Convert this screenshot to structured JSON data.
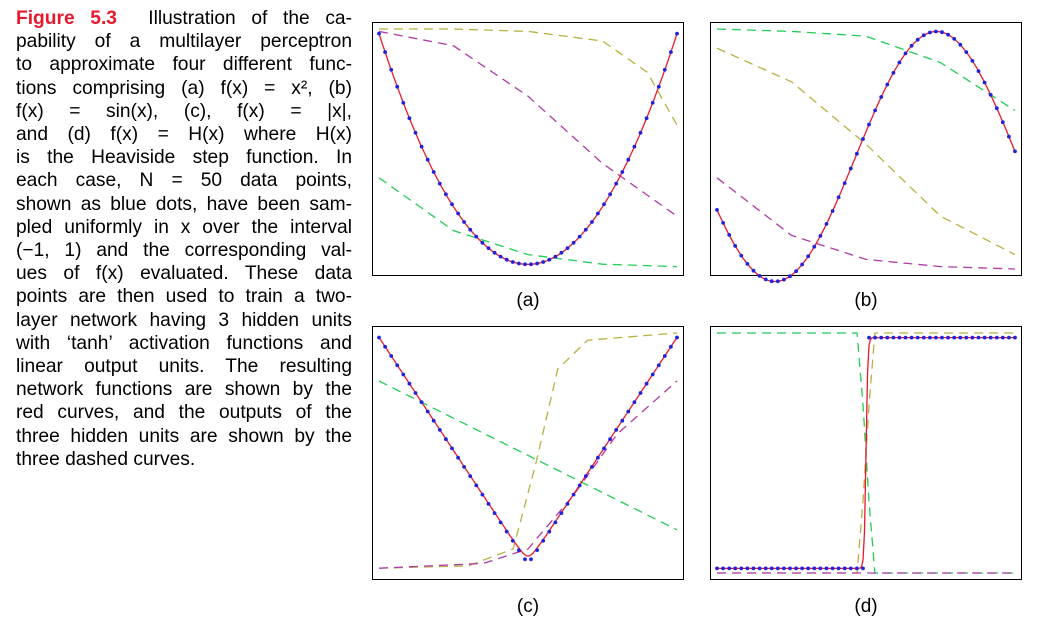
{
  "caption": {
    "label": "Figure 5.3",
    "lines": [
      "Illustration of the ca-",
      "pability of a multilayer perceptron",
      "to approximate four different func-",
      "tions comprising (a) f(x) = x², (b)",
      "f(x) = sin(x), (c), f(x) = |x|,",
      "and (d) f(x) = H(x) where H(x)",
      "is the Heaviside step function. In",
      "each case, N = 50 data points,",
      "shown as blue dots, have been sam-",
      "pled uniformly in x over the interval",
      "(−1, 1) and the corresponding val-",
      "ues of f(x) evaluated. These data",
      "points are then used to train a two-",
      "layer network having 3 hidden units",
      "with ‘tanh’ activation functions and",
      "linear output units. The resulting",
      "network functions are shown by the",
      "red curves, and the outputs of the",
      "three hidden units are shown by the",
      "three dashed curves."
    ]
  },
  "colors": {
    "data_points": "#2222dd",
    "network": "#e8192c",
    "hidden_green": "#22cc55",
    "hidden_olive": "#b8b040",
    "hidden_purple": "#b03aa8"
  },
  "chart_data": [
    {
      "type": "line",
      "panel_label": "(a)",
      "function": "x^2",
      "xlim": [
        -1,
        1
      ],
      "n_points": 50,
      "series": [
        {
          "role": "data",
          "style": "dots"
        },
        {
          "role": "network",
          "style": "solid"
        },
        {
          "role": "hidden",
          "style": "dashed",
          "x": [
            -1,
            -0.5,
            0,
            0.5,
            1
          ],
          "y": [
            0.38,
            0.16,
            0.06,
            0.02,
            0.01
          ]
        },
        {
          "role": "hidden",
          "style": "dashed",
          "x": [
            -1,
            -0.5,
            0,
            0.5,
            0.8,
            1
          ],
          "y": [
            1.0,
            1.0,
            0.99,
            0.95,
            0.82,
            0.6
          ]
        },
        {
          "role": "hidden",
          "style": "dashed",
          "x": [
            -1,
            -0.5,
            0,
            0.5,
            1
          ],
          "y": [
            0.99,
            0.93,
            0.72,
            0.44,
            0.22
          ]
        }
      ]
    },
    {
      "type": "line",
      "panel_label": "(b)",
      "function": "sin(x)",
      "xlim": [
        -1,
        1
      ],
      "n_points": 50,
      "series": [
        {
          "role": "data",
          "style": "dots"
        },
        {
          "role": "network",
          "style": "solid"
        },
        {
          "role": "hidden",
          "style": "dashed",
          "x": [
            -1,
            -0.5,
            0,
            0.5,
            1
          ],
          "y": [
            1.0,
            0.99,
            0.97,
            0.86,
            0.66
          ]
        },
        {
          "role": "hidden",
          "style": "dashed",
          "x": [
            -1,
            -0.5,
            0,
            0.5,
            1
          ],
          "y": [
            0.92,
            0.78,
            0.52,
            0.22,
            0.06
          ]
        },
        {
          "role": "hidden",
          "style": "dashed",
          "x": [
            -1,
            -0.5,
            0,
            0.5,
            1
          ],
          "y": [
            0.38,
            0.14,
            0.04,
            0.01,
            0.0
          ]
        }
      ]
    },
    {
      "type": "line",
      "panel_label": "(c)",
      "function": "|x|",
      "xlim": [
        -1,
        1
      ],
      "n_points": 50,
      "series": [
        {
          "role": "data",
          "style": "dots"
        },
        {
          "role": "network",
          "style": "solid"
        },
        {
          "role": "hidden",
          "style": "dashed",
          "x": [
            -1,
            1
          ],
          "y": [
            0.8,
            0.18
          ]
        },
        {
          "role": "hidden",
          "style": "dashed",
          "x": [
            -1,
            -0.4,
            -0.1,
            0.05,
            0.2,
            0.4,
            1
          ],
          "y": [
            0.02,
            0.03,
            0.1,
            0.45,
            0.85,
            0.97,
            1.0
          ]
        },
        {
          "role": "hidden",
          "style": "dashed",
          "x": [
            -1,
            -0.3,
            0,
            0.3,
            0.6,
            1
          ],
          "y": [
            0.02,
            0.04,
            0.1,
            0.32,
            0.58,
            0.8
          ]
        }
      ]
    },
    {
      "type": "line",
      "panel_label": "(d)",
      "function": "H(x)",
      "xlim": [
        -1,
        1
      ],
      "n_points": 50,
      "series": [
        {
          "role": "data",
          "style": "dots"
        },
        {
          "role": "network",
          "style": "solid"
        },
        {
          "role": "hidden",
          "style": "dashed",
          "x": [
            -1,
            -0.06,
            -0.02,
            0.02,
            0.06,
            1
          ],
          "y": [
            1.0,
            1.0,
            0.7,
            0.3,
            0.0,
            0.0
          ]
        },
        {
          "role": "hidden",
          "style": "dashed",
          "x": [
            -1,
            -0.06,
            -0.02,
            0.02,
            0.06,
            1
          ],
          "y": [
            0.0,
            0.0,
            0.3,
            0.7,
            1.0,
            1.0
          ]
        },
        {
          "role": "hidden",
          "style": "dashed",
          "x": [
            -1,
            1
          ],
          "y": [
            0.0,
            0.0
          ]
        }
      ]
    }
  ]
}
